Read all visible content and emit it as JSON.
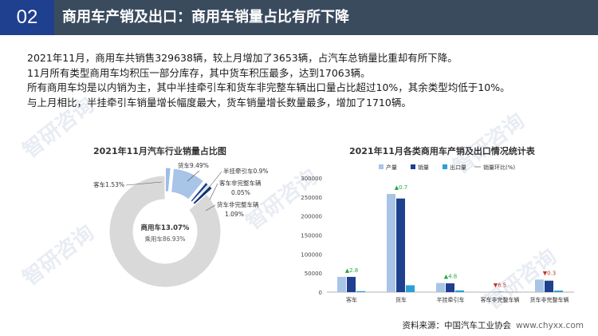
{
  "header": {
    "number": "02",
    "title": "商用车产销及出口：商用车销量占比有所下降"
  },
  "summary": [
    "2021年11月，商用车共销售329638辆，较上月增加了3653辆，占汽车总销量比重却有所下降。",
    "11月所有类型商用车均积压一部分库存，其中货车积压最多，达到17063辆。",
    "所有商用车均是以内销为主，其中半挂牵引车和货车非完整车辆出口量占比超过10%，其余类型均低于10%。",
    "与上月相比，半挂牵引车销量增长幅度最大，货车销量增长数量最多，增加了1710辆。"
  ],
  "watermark": "智研咨询",
  "colors": {
    "header_dark": "#1f3f8f",
    "header_gray": "#3b4b5e",
    "production": "#a8c4e6",
    "sales": "#1f3f8f",
    "exports": "#2b9fd8",
    "up": "#27a745",
    "down": "#c0392b"
  },
  "chart_data": [
    {
      "type": "pie",
      "title": "2021年11月汽车行业销量占比图",
      "center_label": "商用车13.07%",
      "center_sub": "乘用车86.93%",
      "slices": [
        {
          "label": "客车1.53%",
          "value": 1.53,
          "color": "#9dbde3"
        },
        {
          "label": "货车9.49%",
          "value": 9.49,
          "color": "#a8c4e6"
        },
        {
          "label": "半挂牵引车0.9%",
          "value": 0.9,
          "color": "#1f3f8f"
        },
        {
          "label": "客车非完整车辆0.05%",
          "value": 0.05,
          "color": "#2b9fd8"
        },
        {
          "label": "货车非完整车辆1.09%",
          "value": 1.09,
          "color": "#12306e"
        },
        {
          "label": "乘用车86.93%",
          "value": 86.93,
          "color": "#d9d9d9"
        }
      ]
    },
    {
      "type": "bar",
      "title": "2021年11月各类商用车产销及出口情况统计表",
      "categories": [
        "客车",
        "货车",
        "半挂牵引车",
        "客车非完整车辆",
        "货车非完整车辆"
      ],
      "series": [
        {
          "name": "产量",
          "values": [
            40000,
            258000,
            24000,
            800,
            33000
          ],
          "color": "#a8c4e6"
        },
        {
          "name": "销量",
          "values": [
            40000,
            246000,
            23000,
            600,
            30000
          ],
          "color": "#1f3f8f"
        },
        {
          "name": "出口量",
          "values": [
            2500,
            18000,
            4500,
            50,
            4000
          ],
          "color": "#2b9fd8"
        }
      ],
      "line_series": {
        "name": "销量环比(%)",
        "labels": [
          "▲2.8",
          "▲0.7",
          "▲4.8",
          "▼6.5",
          "▼0.3"
        ],
        "values": [
          2.8,
          0.7,
          4.8,
          -6.5,
          -0.3
        ]
      },
      "ylim": [
        0,
        300000
      ],
      "yticks": [
        0,
        50000,
        100000,
        150000,
        200000,
        250000,
        300000
      ],
      "ytick_labels": [
        "0",
        "50000",
        "100000",
        "150000",
        "200000",
        "250000",
        "300000"
      ]
    }
  ],
  "footer": {
    "source": "资料来源：中国汽车工业协会",
    "url": "www.chyxx.com"
  }
}
